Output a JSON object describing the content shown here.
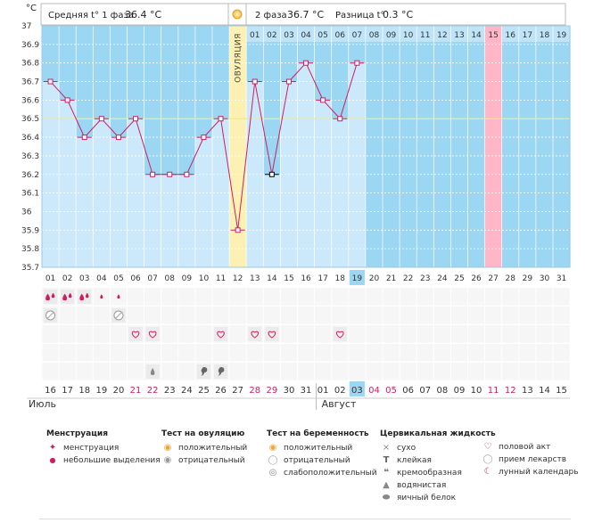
{
  "header": {
    "unit": "°C",
    "phase1_label": "Средняя t° 1 фаза",
    "phase1_value": "36.4 °C",
    "phase2_label": "2 фаза",
    "phase2_value": "36.7 °C",
    "diff_label": "Разница t°",
    "diff_value": "0.3 °C"
  },
  "colors": {
    "bar": "#cce9fb",
    "bg_blue": "#9bd6f2",
    "ovulation": "#fcf1b3",
    "pink": "#ffb6c6",
    "line": "#cc1f63",
    "today": "#9bd6f2",
    "weekend": "#cc1f63"
  },
  "chart_data": {
    "type": "line",
    "title": "",
    "xlabel": "",
    "ylabel": "°C",
    "ylim": [
      35.7,
      37.0
    ],
    "y_ticks": [
      "37",
      "36.9",
      "36.8",
      "36.7",
      "36.6",
      "36.5",
      "36.4",
      "36.3",
      "36.2",
      "36.1",
      "36",
      "35.9",
      "35.8",
      "35.7"
    ],
    "cycle_days": [
      "01",
      "02",
      "03",
      "04",
      "05",
      "06",
      "07",
      "08",
      "09",
      "10",
      "11",
      "12",
      "13",
      "14",
      "15",
      "16",
      "17",
      "18",
      "19",
      "20",
      "21",
      "22",
      "23",
      "24",
      "25",
      "26",
      "27",
      "28",
      "29",
      "30",
      "31"
    ],
    "temperatures": [
      36.7,
      36.6,
      36.4,
      36.5,
      36.4,
      36.5,
      36.2,
      36.2,
      36.2,
      36.4,
      36.5,
      35.9,
      36.7,
      36.2,
      36.7,
      36.8,
      36.6,
      36.5,
      36.8,
      null,
      null,
      null,
      null,
      null,
      null,
      null,
      null,
      null,
      null,
      null,
      null
    ],
    "coverline": 36.5,
    "ovulation_day_index": 11,
    "ovulation_label": "ОВУЛЯЦИЯ",
    "phase2_days": [
      "01",
      "02",
      "03",
      "04",
      "05",
      "06",
      "07",
      "08",
      "09",
      "10",
      "11",
      "12",
      "13",
      "14",
      "15",
      "16",
      "17",
      "18",
      "19"
    ],
    "highlight_phase2_index": 14,
    "today_index": 18,
    "calendar_dates": [
      "16",
      "17",
      "18",
      "19",
      "20",
      "21",
      "22",
      "23",
      "24",
      "25",
      "26",
      "27",
      "28",
      "29",
      "30",
      "31",
      "01",
      "02",
      "03",
      "04",
      "05",
      "06",
      "07",
      "08",
      "09",
      "10",
      "11",
      "12",
      "13",
      "14",
      "15"
    ],
    "weekend_indices": [
      5,
      6,
      12,
      13,
      19,
      20,
      26,
      27
    ],
    "months": [
      {
        "name": "Июль",
        "start_index": 0
      },
      {
        "name": "Август",
        "start_index": 16
      }
    ]
  },
  "symbols": {
    "menstruation_heavy": [
      0,
      1,
      2
    ],
    "menstruation_light": [
      3,
      4
    ],
    "ovulation_test_negative": [
      0,
      4
    ],
    "intercourse": [
      5,
      6,
      10,
      12,
      13,
      17
    ],
    "cervical_watery": [
      6
    ],
    "cervical_creamy": [
      9,
      10
    ]
  },
  "legend": {
    "menstruation": {
      "title": "Менструация",
      "items": [
        "менструация",
        "небольшие выделения"
      ]
    },
    "ovulation_test": {
      "title": "Тест на овуляцию",
      "items": [
        "положительный",
        "отрицательный"
      ]
    },
    "pregnancy_test": {
      "title": "Тест на беременность",
      "items": [
        "положительный",
        "отрицательный",
        "слабоположительный"
      ]
    },
    "cervical": {
      "title": "Цервикальная жидкость",
      "items": [
        "сухо",
        "клейкая",
        "кремообразная",
        "водянистая",
        "яичный белок"
      ]
    },
    "other": {
      "items": [
        "половой акт",
        "прием лекарств",
        "лунный календарь"
      ]
    },
    "icons": {
      "heavy": "blood-drops-icon",
      "light": "small-drop-icon",
      "pos": "sun-positive-icon",
      "neg": "sun-negative-icon",
      "dry": "cross-icon",
      "sticky": "t-icon",
      "creamy": "comma-icon",
      "watery": "drop-icon",
      "egg": "egg-icon",
      "heart": "heart-icon",
      "pill": "pill-icon",
      "moon": "moon-icon"
    }
  }
}
